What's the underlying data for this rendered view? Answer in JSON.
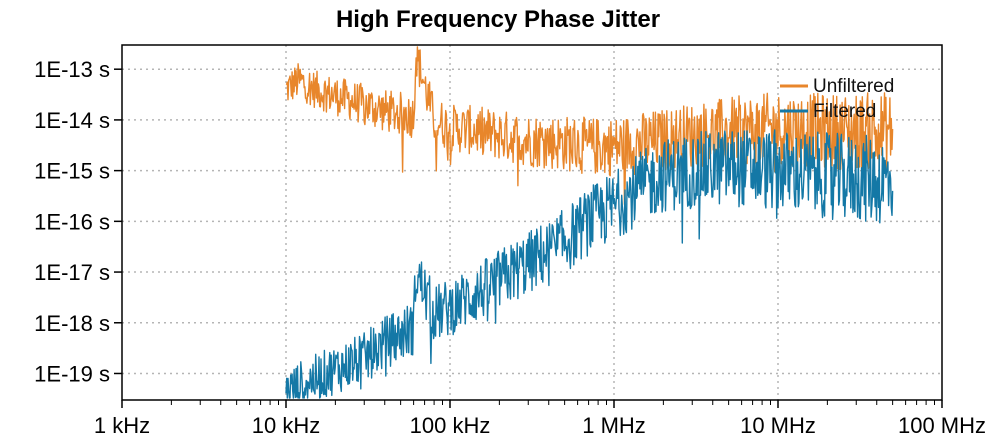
{
  "chart_data": {
    "type": "line",
    "title": "High Frequency Phase Jitter",
    "xlabel": "",
    "ylabel": "",
    "x_scale": "log",
    "y_scale": "log",
    "xlim": [
      1000,
      100000000
    ],
    "ylim": [
      3e-20,
      3e-13
    ],
    "x_ticks": [
      {
        "value": 1000,
        "label": "1 kHz"
      },
      {
        "value": 10000,
        "label": "10 kHz"
      },
      {
        "value": 100000,
        "label": "100 kHz"
      },
      {
        "value": 1000000,
        "label": "1 MHz"
      },
      {
        "value": 10000000,
        "label": "10 MHz"
      },
      {
        "value": 100000000,
        "label": "100 MHz"
      }
    ],
    "y_ticks": [
      {
        "value": 1e-13,
        "label": "1E-13 s"
      },
      {
        "value": 1e-14,
        "label": "1E-14 s"
      },
      {
        "value": 1e-15,
        "label": "1E-15 s"
      },
      {
        "value": 1e-16,
        "label": "1E-16 s"
      },
      {
        "value": 1e-17,
        "label": "1E-17 s"
      },
      {
        "value": 1e-18,
        "label": "1E-18 s"
      },
      {
        "value": 1e-19,
        "label": "1E-19 s"
      }
    ],
    "grid": true,
    "legend": "top-right",
    "series": [
      {
        "name": "Unfiltered",
        "color": "#e8862b",
        "x": [
          10000,
          12000,
          15000,
          20000,
          30000,
          40000,
          60000,
          62000,
          80000,
          100000,
          150000,
          200000,
          300000,
          500000,
          700000,
          1000000,
          2000000,
          3000000,
          5000000,
          10000000,
          20000000,
          50000000
        ],
        "y": [
          4e-14,
          6e-14,
          4e-14,
          3e-14,
          2e-14,
          1.5e-14,
          1.2e-14,
          2e-13,
          1e-14,
          7e-15,
          6e-15,
          5e-15,
          4e-15,
          3.5e-15,
          3e-15,
          3e-15,
          4e-15,
          5e-15,
          6e-15,
          7e-15,
          6e-15,
          6e-15
        ]
      },
      {
        "name": "Filtered",
        "color": "#1478a6",
        "x": [
          10000,
          12000,
          15000,
          20000,
          30000,
          40000,
          60000,
          62000,
          80000,
          100000,
          150000,
          200000,
          300000,
          500000,
          700000,
          1000000,
          1500000,
          2000000,
          3000000,
          5000000,
          10000000,
          20000000,
          50000000
        ],
        "y": [
          4e-20,
          6e-20,
          8e-20,
          1.2e-19,
          2e-19,
          4e-19,
          8e-19,
          1e-17,
          1.5e-18,
          2e-18,
          4e-18,
          7e-18,
          1.5e-17,
          4e-17,
          1e-16,
          2e-16,
          5e-16,
          8e-16,
          1e-15,
          1.2e-15,
          1e-15,
          8e-16,
          6e-16
        ]
      }
    ]
  }
}
